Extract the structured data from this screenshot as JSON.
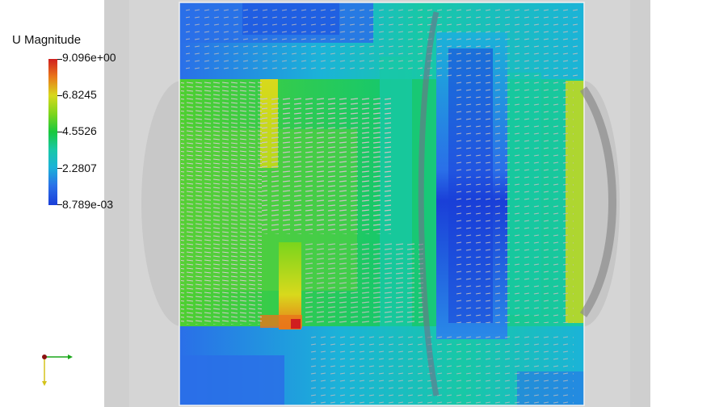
{
  "legend": {
    "title": "U Magnitude",
    "labels": [
      "9.096e+00",
      "6.8245",
      "4.5526",
      "2.2807",
      "8.789e-03"
    ]
  },
  "colors": {
    "background": "#ffffff",
    "domain_backdrop": "#cfcfcf",
    "colormap": [
      "#d01f1f",
      "#e9761a",
      "#d8d91c",
      "#7ad51c",
      "#18c83e",
      "#18c8a6",
      "#1bb3d8",
      "#2a6fe8",
      "#1a3fd8"
    ],
    "x_axis": "#1aa71a",
    "y_axis": "#d4c31a",
    "origin": "#8a1010"
  },
  "icons": {
    "orientation_axes": "axes-triad-icon"
  }
}
